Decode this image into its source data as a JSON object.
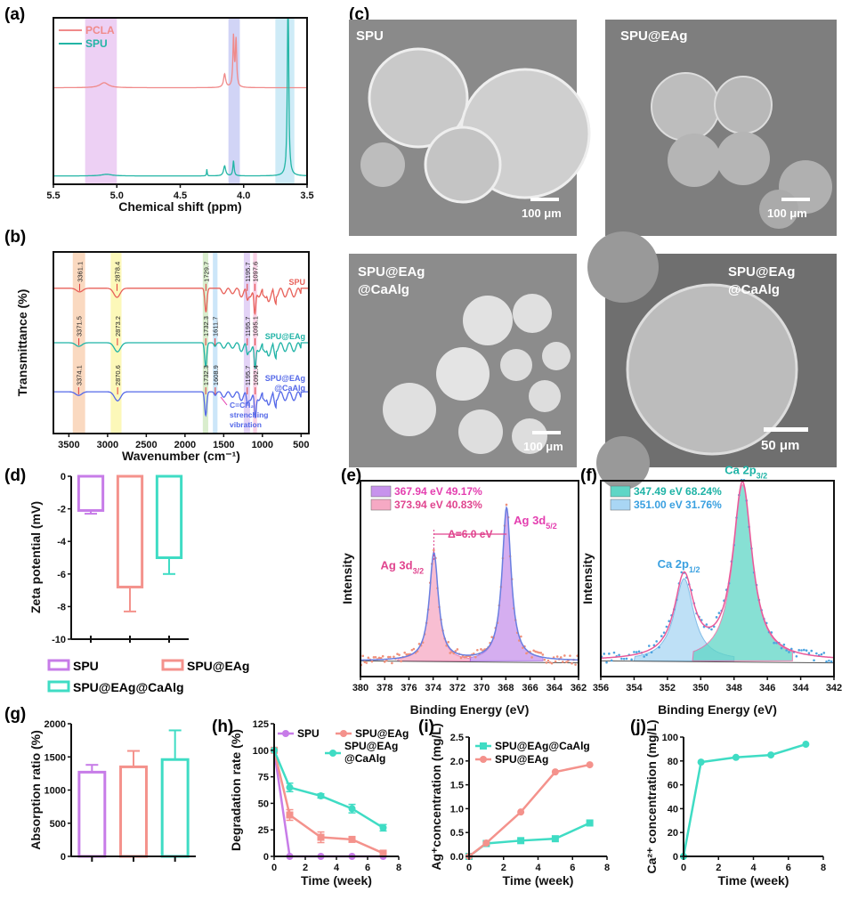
{
  "panels": {
    "a": "(a)",
    "b": "(b)",
    "c": "(c)",
    "d": "(d)",
    "e": "(e)",
    "f": "(f)",
    "g": "(g)",
    "h": "(h)",
    "i": "(i)",
    "j": "(j)"
  },
  "sem": [
    {
      "title": "SPU",
      "scale": "100 μm"
    },
    {
      "title": "SPU@EAg",
      "scale": "100 μm"
    },
    {
      "title_lines": [
        "SPU@EAg",
        "@CaAlg"
      ],
      "scale": "100 μm"
    },
    {
      "title_lines": [
        "SPU@EAg",
        "@CaAlg"
      ],
      "scale": "50 μm"
    }
  ],
  "colors": {
    "pcla": "#f08a8a",
    "spu_nmr": "#22b5a5",
    "spu": "#e8615a",
    "eag": "#1fb3a6",
    "caalg": "#5468e8",
    "purple": "#c77ce8",
    "salmon": "#f4928c",
    "teal": "#3fdcc4",
    "magenta": "#e43fb0"
  },
  "chart_data": [
    {
      "id": "a",
      "type": "line",
      "title": "",
      "xlabel": "Chemical shift (ppm)",
      "ylabel": "",
      "xlim": [
        5.5,
        3.5
      ],
      "xticks": [
        5.5,
        5.0,
        4.5,
        4.0,
        3.5
      ],
      "xtick_labels": [
        "5.5",
        "5.0",
        "4.5",
        "4.0",
        "3.5"
      ],
      "legend": [
        "PCLA",
        "SPU"
      ],
      "legend_position": "top-left",
      "highlight_bands_ppm": [
        [
          5.25,
          5.0
        ],
        [
          4.12,
          4.03
        ],
        [
          3.75,
          3.6
        ]
      ],
      "series": [
        {
          "name": "PCLA",
          "offset": 0.58,
          "peaks_ppm": [
            [
              5.1,
              0.03,
              0.04
            ],
            [
              4.15,
              0.08,
              0.01
            ],
            [
              4.08,
              0.3,
              0.006
            ],
            [
              4.06,
              0.28,
              0.006
            ]
          ]
        },
        {
          "name": "SPU",
          "offset": 0.05,
          "peaks_ppm": [
            [
              5.08,
              0.01,
              0.05
            ],
            [
              4.29,
              0.04,
              0.003
            ],
            [
              4.15,
              0.06,
              0.01
            ],
            [
              4.08,
              0.09,
              0.006
            ],
            [
              3.65,
              1.2,
              0.006
            ]
          ]
        }
      ]
    },
    {
      "id": "b",
      "type": "line",
      "xlabel": "Wavenumber (cm⁻¹)",
      "ylabel": "Transmittance (%)",
      "xlim": [
        3700,
        400
      ],
      "xticks": [
        3500,
        3000,
        2500,
        2000,
        1500,
        1000,
        500
      ],
      "xtick_labels": [
        "3500",
        "3000",
        "2500",
        "2000",
        "1500",
        "1000",
        "500"
      ],
      "highlight_bands": [
        [
          3450,
          3290
        ],
        [
          2960,
          2820
        ],
        [
          1770,
          1700
        ],
        [
          1640,
          1580
        ],
        [
          1240,
          1160
        ],
        [
          1120,
          1070
        ]
      ],
      "series": [
        {
          "name": "SPU",
          "peak_labels": [
            "3361.1",
            "2878.4",
            "1729.7",
            "1195.7",
            "1097.6"
          ],
          "peaks": [
            3361.1,
            2878.4,
            1729.7,
            1195.7,
            1097.6
          ]
        },
        {
          "name": "SPU@EAg",
          "peak_labels": [
            "3371.5",
            "2873.2",
            "1732.3",
            "1611.7",
            "1195.7",
            "1095.1"
          ],
          "peaks": [
            3371.5,
            2873.2,
            1732.3,
            1611.7,
            1195.7,
            1095.1
          ]
        },
        {
          "name_lines": [
            "SPU@EAg",
            "@CaAlg"
          ],
          "peak_labels": [
            "3374.1",
            "2870.6",
            "1732.3",
            "1608.9",
            "1195.7",
            "1092.4"
          ],
          "peaks": [
            3374.1,
            2870.6,
            1732.3,
            1608.9,
            1195.7,
            1092.4
          ]
        }
      ],
      "annotation_lines": [
        "C=CH₂",
        "strenching",
        "vibration"
      ]
    },
    {
      "id": "d",
      "type": "bar",
      "ylabel": "Zeta potential (mV)",
      "ylim": [
        -10,
        0
      ],
      "yticks": [
        0,
        -2,
        -4,
        -6,
        -8,
        -10
      ],
      "ytick_labels": [
        "0",
        "-2",
        "-4",
        "-6",
        "-8",
        "-10"
      ],
      "categories": [
        "SPU",
        "SPU@EAg",
        "SPU@EAg@CaAlg"
      ],
      "values": [
        -2.1,
        -6.8,
        -5.0
      ],
      "errors": [
        0.2,
        1.5,
        1.0
      ],
      "legend_position": "bottom"
    },
    {
      "id": "e",
      "type": "line",
      "xlabel": "Binding Energy (eV)",
      "ylabel": "Intensity",
      "xlim": [
        380,
        362
      ],
      "xticks": [
        380,
        378,
        376,
        374,
        372,
        370,
        368,
        366,
        364,
        362
      ],
      "xtick_labels": [
        "380",
        "378",
        "376",
        "374",
        "372",
        "370",
        "368",
        "366",
        "364",
        "362"
      ],
      "legend": [
        "367.94 eV 49.17%",
        "373.94 eV 40.83%"
      ],
      "peaks": [
        {
          "label": "Ag 3d",
          "sub": "3/2",
          "center": 373.94,
          "height": 0.55
        },
        {
          "label": "Ag 3d",
          "sub": "5/2",
          "center": 367.94,
          "height": 0.78
        }
      ],
      "annotation": "Δ=6.0 eV"
    },
    {
      "id": "f",
      "type": "line",
      "xlabel": "Binding Energy (eV)",
      "ylabel": "Intensity",
      "xlim": [
        356,
        342
      ],
      "xticks": [
        356,
        354,
        352,
        350,
        348,
        346,
        344,
        342
      ],
      "xtick_labels": [
        "356",
        "354",
        "352",
        "350",
        "348",
        "346",
        "344",
        "342"
      ],
      "legend": [
        "347.49 eV 68.24%",
        "351.00 eV 31.76%"
      ],
      "peaks": [
        {
          "label": "Ca 2p",
          "sub": "1/2",
          "center": 351.0,
          "height": 0.42
        },
        {
          "label": "Ca 2p",
          "sub": "3/2",
          "center": 347.49,
          "height": 0.9
        }
      ]
    },
    {
      "id": "g",
      "type": "bar",
      "ylabel": "Absorption ratio (%)",
      "ylim": [
        0,
        2000
      ],
      "yticks": [
        0,
        500,
        1000,
        1500,
        2000
      ],
      "ytick_labels": [
        "0",
        "500",
        "1000",
        "1500",
        "2000"
      ],
      "categories": [
        "SPU",
        "SPU@EAg",
        "SPU@EAg@CaAlg"
      ],
      "values": [
        1270,
        1350,
        1460
      ],
      "errors": [
        110,
        240,
        440
      ]
    },
    {
      "id": "h",
      "type": "line",
      "xlabel": "Time (week)",
      "ylabel": "Degradation rate (%)",
      "xlim": [
        0,
        8
      ],
      "ylim": [
        0,
        125
      ],
      "xticks": [
        0,
        2,
        4,
        6,
        8
      ],
      "xtick_labels": [
        "0",
        "2",
        "4",
        "6",
        "8"
      ],
      "yticks": [
        0,
        25,
        50,
        75,
        100,
        125
      ],
      "ytick_labels": [
        "0",
        "25",
        "50",
        "75",
        "100",
        "125"
      ],
      "x": [
        0,
        1,
        3,
        5,
        7
      ],
      "series": [
        {
          "name": "SPU",
          "values": [
            100,
            0,
            0,
            0,
            0
          ],
          "errors": [
            0,
            0,
            0,
            0,
            0
          ]
        },
        {
          "name": "SPU@EAg",
          "values": [
            100,
            39,
            18,
            16,
            3
          ],
          "errors": [
            0,
            5,
            5,
            2,
            2
          ]
        },
        {
          "name": "SPU@EAg @CaAlg",
          "name_lines": [
            "SPU@EAg",
            "@CaAlg"
          ],
          "values": [
            100,
            65,
            57,
            45,
            27
          ],
          "errors": [
            0,
            4,
            2,
            4,
            3
          ]
        }
      ]
    },
    {
      "id": "i",
      "type": "line",
      "xlabel": "Time (week)",
      "ylabel": "Ag⁺concentration (mg/L)",
      "xlim": [
        0,
        8
      ],
      "ylim": [
        0,
        2.5
      ],
      "xticks": [
        0,
        2,
        4,
        6,
        8
      ],
      "xtick_labels": [
        "0",
        "2",
        "4",
        "6",
        "8"
      ],
      "yticks": [
        0,
        0.5,
        1.0,
        1.5,
        2.0,
        2.5
      ],
      "ytick_labels": [
        "0.0",
        "0.5",
        "1.0",
        "1.5",
        "2.0",
        "2.5"
      ],
      "x": [
        0,
        1,
        3,
        5,
        7
      ],
      "series": [
        {
          "name": "SPU@EAg@CaAlg",
          "values": [
            0,
            0.27,
            0.33,
            0.37,
            0.7
          ]
        },
        {
          "name": "SPU@EAg",
          "values": [
            0,
            0.28,
            0.93,
            1.77,
            1.92
          ]
        }
      ]
    },
    {
      "id": "j",
      "type": "line",
      "xlabel": "Time (week)",
      "ylabel": "Ca²⁺ concentration (mg/L)",
      "xlim": [
        0,
        8
      ],
      "ylim": [
        0,
        100
      ],
      "xticks": [
        0,
        2,
        4,
        6,
        8
      ],
      "xtick_labels": [
        "0",
        "2",
        "4",
        "6",
        "8"
      ],
      "yticks": [
        0,
        20,
        40,
        60,
        80,
        100
      ],
      "ytick_labels": [
        "0",
        "20",
        "40",
        "60",
        "80",
        "100"
      ],
      "x": [
        0,
        1,
        3,
        5,
        7
      ],
      "series": [
        {
          "name": "Ca",
          "values": [
            0,
            79,
            83,
            85,
            94
          ]
        }
      ]
    }
  ]
}
